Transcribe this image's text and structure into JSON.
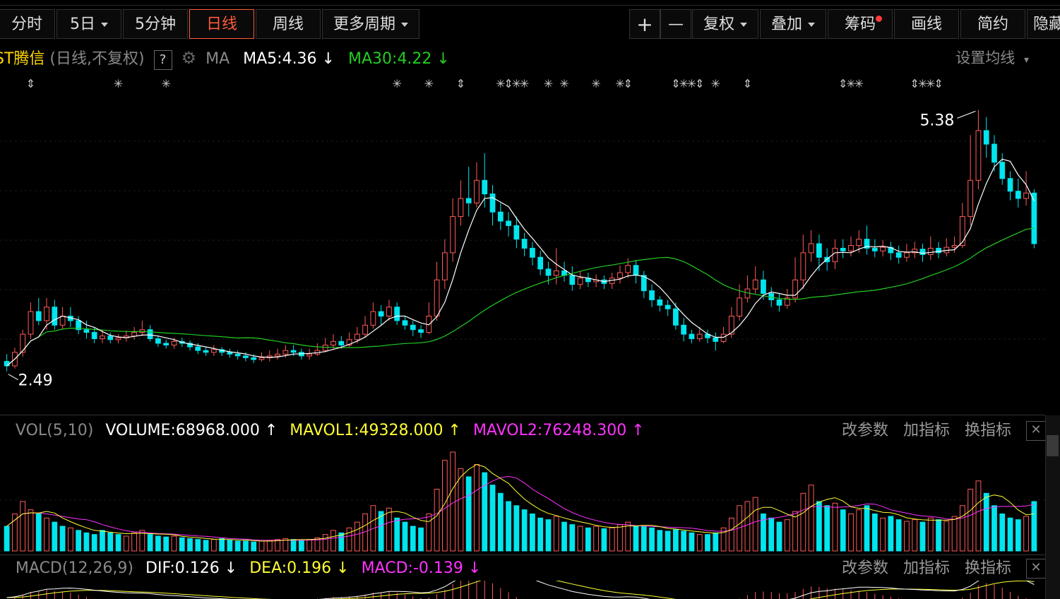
{
  "toolbar": {
    "tabs_left": [
      {
        "label": "分时"
      },
      {
        "label": "5日"
      },
      {
        "label": "5分钟"
      },
      {
        "label": "日线",
        "active": true
      },
      {
        "label": "周线"
      },
      {
        "label": "更多周期"
      }
    ],
    "tabs_right": [
      {
        "label": "+"
      },
      {
        "label": "—"
      },
      {
        "label": "复权"
      },
      {
        "label": "叠加"
      },
      {
        "label": "筹码"
      },
      {
        "label": "画线"
      },
      {
        "label": "简约"
      },
      {
        "label": "隐藏"
      }
    ]
  },
  "price_header": {
    "stock_name": "ST腾信",
    "mode": "(日线,不复权)",
    "help": "?",
    "ma_label": "MA",
    "ma5": "MA5:4.36",
    "ma30": "MA30:4.22",
    "settings_label": "设置均线"
  },
  "vol_header": {
    "name": "VOL(5,10)",
    "volume": "VOLUME:68968.000",
    "mavol1": "MAVOL1:49328.000",
    "mavol2": "MAVOL2:76248.300"
  },
  "macd_header": {
    "name": "MACD(12,26,9)",
    "dif": "DIF:0.126",
    "dea": "DEA:0.196",
    "macd": "MACD:-0.139"
  },
  "panel_actions": {
    "change_params": "改参数",
    "add_indicator": "加指标",
    "swap_indicator": "换指标",
    "close": "✕"
  },
  "colors": {
    "up": "#ff5a5a",
    "down": "#00e5ee",
    "ma5": "#ffffff",
    "ma30": "#22cc22",
    "mavol1": "#ffff33",
    "mavol2": "#ff33ff",
    "active_tab": "#ff5a3c"
  },
  "chart_data": {
    "type": "candlestick",
    "annotations": {
      "high_label": "5.38",
      "low_label": "2.49",
      "high": 5.38,
      "low": 2.49
    },
    "ylim": [
      2.3,
      5.5
    ],
    "ma5_last": 4.36,
    "ma30_last": 4.22,
    "candles": [
      [
        2.6,
        2.55,
        2.68,
        2.49
      ],
      [
        2.55,
        2.7,
        2.75,
        2.52
      ],
      [
        2.7,
        2.9,
        2.95,
        2.65
      ],
      [
        2.9,
        3.15,
        3.25,
        2.85
      ],
      [
        3.15,
        3.05,
        3.3,
        3.0
      ],
      [
        3.05,
        3.2,
        3.3,
        2.95
      ],
      [
        3.2,
        3.0,
        3.28,
        2.95
      ],
      [
        3.0,
        3.1,
        3.2,
        2.96
      ],
      [
        3.1,
        3.05,
        3.2,
        2.98
      ],
      [
        3.05,
        2.95,
        3.1,
        2.9
      ],
      [
        2.95,
        2.92,
        3.05,
        2.85
      ],
      [
        2.92,
        2.85,
        2.98,
        2.8
      ],
      [
        2.85,
        2.88,
        2.95,
        2.8
      ],
      [
        2.88,
        2.84,
        2.92,
        2.8
      ],
      [
        2.84,
        2.86,
        2.9,
        2.8
      ],
      [
        2.86,
        2.88,
        2.94,
        2.82
      ],
      [
        2.88,
        2.92,
        2.98,
        2.84
      ],
      [
        2.92,
        2.95,
        3.05,
        2.88
      ],
      [
        2.95,
        2.85,
        3.0,
        2.82
      ],
      [
        2.85,
        2.8,
        2.88,
        2.76
      ],
      [
        2.8,
        2.78,
        2.84,
        2.74
      ],
      [
        2.78,
        2.82,
        2.86,
        2.74
      ],
      [
        2.82,
        2.8,
        2.86,
        2.76
      ],
      [
        2.8,
        2.76,
        2.83,
        2.72
      ],
      [
        2.76,
        2.72,
        2.8,
        2.68
      ],
      [
        2.72,
        2.7,
        2.76,
        2.66
      ],
      [
        2.7,
        2.73,
        2.78,
        2.66
      ],
      [
        2.73,
        2.7,
        2.76,
        2.66
      ],
      [
        2.7,
        2.68,
        2.74,
        2.64
      ],
      [
        2.68,
        2.66,
        2.72,
        2.62
      ],
      [
        2.66,
        2.64,
        2.7,
        2.6
      ],
      [
        2.64,
        2.62,
        2.68,
        2.58
      ],
      [
        2.62,
        2.64,
        2.7,
        2.6
      ],
      [
        2.64,
        2.66,
        2.72,
        2.6
      ],
      [
        2.66,
        2.68,
        2.74,
        2.62
      ],
      [
        2.68,
        2.72,
        2.78,
        2.64
      ],
      [
        2.72,
        2.7,
        2.78,
        2.66
      ],
      [
        2.7,
        2.66,
        2.74,
        2.62
      ],
      [
        2.66,
        2.68,
        2.74,
        2.62
      ],
      [
        2.68,
        2.72,
        2.8,
        2.66
      ],
      [
        2.72,
        2.78,
        2.86,
        2.7
      ],
      [
        2.78,
        2.82,
        2.9,
        2.74
      ],
      [
        2.82,
        2.78,
        2.88,
        2.74
      ],
      [
        2.78,
        2.84,
        2.92,
        2.76
      ],
      [
        2.84,
        2.9,
        2.98,
        2.8
      ],
      [
        2.9,
        3.0,
        3.1,
        2.86
      ],
      [
        3.0,
        3.15,
        3.25,
        2.96
      ],
      [
        3.15,
        3.1,
        3.22,
        3.0
      ],
      [
        3.1,
        3.2,
        3.28,
        3.05
      ],
      [
        3.2,
        3.05,
        3.25,
        3.0
      ],
      [
        3.05,
        3.0,
        3.1,
        2.95
      ],
      [
        3.0,
        2.95,
        3.05,
        2.88
      ],
      [
        2.95,
        2.92,
        3.0,
        2.86
      ],
      [
        2.92,
        3.1,
        3.25,
        2.9
      ],
      [
        3.1,
        3.5,
        3.7,
        3.05
      ],
      [
        3.5,
        3.8,
        3.95,
        3.4
      ],
      [
        3.8,
        4.2,
        4.4,
        3.7
      ],
      [
        4.2,
        4.4,
        4.6,
        4.1
      ],
      [
        4.4,
        4.35,
        4.75,
        4.2
      ],
      [
        4.35,
        4.6,
        4.8,
        4.3
      ],
      [
        4.6,
        4.45,
        4.9,
        4.3
      ],
      [
        4.45,
        4.25,
        4.55,
        4.1
      ],
      [
        4.25,
        4.15,
        4.35,
        4.05
      ],
      [
        4.15,
        4.1,
        4.25,
        3.98
      ],
      [
        4.1,
        3.95,
        4.2,
        3.85
      ],
      [
        3.95,
        3.85,
        4.02,
        3.76
      ],
      [
        3.85,
        3.75,
        3.92,
        3.66
      ],
      [
        3.75,
        3.62,
        3.82,
        3.55
      ],
      [
        3.62,
        3.55,
        3.7,
        3.45
      ],
      [
        3.55,
        3.6,
        3.85,
        3.45
      ],
      [
        3.6,
        3.55,
        3.7,
        3.48
      ],
      [
        3.55,
        3.45,
        3.65,
        3.38
      ],
      [
        3.45,
        3.52,
        3.6,
        3.4
      ],
      [
        3.52,
        3.48,
        3.58,
        3.42
      ],
      [
        3.48,
        3.5,
        3.56,
        3.42
      ],
      [
        3.5,
        3.46,
        3.55,
        3.4
      ],
      [
        3.46,
        3.52,
        3.58,
        3.4
      ],
      [
        3.52,
        3.58,
        3.66,
        3.46
      ],
      [
        3.58,
        3.66,
        3.74,
        3.52
      ],
      [
        3.66,
        3.55,
        3.72,
        3.46
      ],
      [
        3.55,
        3.38,
        3.6,
        3.3
      ],
      [
        3.38,
        3.28,
        3.45,
        3.2
      ],
      [
        3.28,
        3.22,
        3.32,
        3.15
      ],
      [
        3.22,
        3.18,
        3.28,
        3.1
      ],
      [
        3.18,
        3.0,
        3.25,
        2.95
      ],
      [
        3.0,
        2.9,
        3.08,
        2.82
      ],
      [
        2.9,
        2.85,
        2.95,
        2.8
      ],
      [
        2.85,
        2.9,
        2.98,
        2.82
      ],
      [
        2.9,
        2.86,
        2.95,
        2.8
      ],
      [
        2.86,
        2.82,
        2.92,
        2.72
      ],
      [
        2.82,
        2.9,
        2.98,
        2.8
      ],
      [
        2.9,
        3.1,
        3.2,
        2.86
      ],
      [
        3.1,
        3.3,
        3.45,
        3.05
      ],
      [
        3.3,
        3.4,
        3.55,
        3.25
      ],
      [
        3.4,
        3.5,
        3.65,
        3.35
      ],
      [
        3.5,
        3.35,
        3.6,
        3.28
      ],
      [
        3.35,
        3.28,
        3.42,
        3.2
      ],
      [
        3.28,
        3.22,
        3.35,
        3.15
      ],
      [
        3.22,
        3.3,
        3.4,
        3.18
      ],
      [
        3.3,
        3.5,
        3.75,
        3.25
      ],
      [
        3.5,
        3.8,
        4.0,
        3.4
      ],
      [
        3.8,
        3.9,
        4.05,
        3.7
      ],
      [
        3.9,
        3.75,
        4.0,
        3.6
      ],
      [
        3.75,
        3.7,
        3.85,
        3.6
      ],
      [
        3.7,
        3.85,
        3.95,
        3.62
      ],
      [
        3.85,
        3.82,
        3.95,
        3.74
      ],
      [
        3.82,
        3.88,
        3.98,
        3.76
      ],
      [
        3.88,
        3.95,
        4.05,
        3.8
      ],
      [
        3.95,
        3.85,
        4.1,
        3.78
      ],
      [
        3.85,
        3.82,
        3.95,
        3.75
      ],
      [
        3.82,
        3.86,
        3.94,
        3.76
      ],
      [
        3.86,
        3.8,
        3.92,
        3.72
      ],
      [
        3.8,
        3.75,
        3.88,
        3.68
      ],
      [
        3.75,
        3.8,
        3.9,
        3.7
      ],
      [
        3.8,
        3.84,
        3.92,
        3.74
      ],
      [
        3.84,
        3.78,
        3.9,
        3.7
      ],
      [
        3.78,
        3.85,
        3.98,
        3.72
      ],
      [
        3.85,
        3.8,
        3.92,
        3.74
      ],
      [
        3.8,
        3.86,
        3.96,
        3.76
      ],
      [
        3.86,
        3.88,
        3.98,
        3.8
      ],
      [
        3.88,
        4.2,
        4.35,
        3.85
      ],
      [
        4.2,
        4.6,
        5.1,
        4.1
      ],
      [
        4.6,
        5.15,
        5.38,
        4.5
      ],
      [
        5.15,
        5.0,
        5.3,
        4.85
      ],
      [
        5.0,
        4.8,
        5.1,
        4.7
      ],
      [
        4.8,
        4.62,
        4.9,
        4.55
      ],
      [
        4.62,
        4.48,
        4.7,
        4.38
      ],
      [
        4.48,
        4.4,
        4.62,
        4.3
      ],
      [
        4.4,
        4.46,
        4.7,
        4.32
      ],
      [
        4.46,
        3.9,
        4.5,
        3.85
      ]
    ],
    "volume": [
      30,
      45,
      60,
      50,
      45,
      40,
      35,
      30,
      28,
      25,
      22,
      20,
      25,
      22,
      20,
      18,
      22,
      25,
      20,
      18,
      17,
      18,
      16,
      15,
      14,
      13,
      14,
      15,
      13,
      12,
      12,
      11,
      12,
      13,
      14,
      15,
      14,
      13,
      14,
      16,
      20,
      25,
      22,
      28,
      35,
      45,
      55,
      48,
      52,
      40,
      35,
      30,
      28,
      45,
      75,
      110,
      120,
      100,
      90,
      105,
      95,
      80,
      70,
      60,
      55,
      50,
      45,
      40,
      38,
      42,
      35,
      32,
      30,
      28,
      30,
      27,
      28,
      32,
      35,
      30,
      30,
      28,
      25,
      24,
      26,
      24,
      22,
      20,
      20,
      22,
      28,
      40,
      55,
      60,
      65,
      45,
      40,
      35,
      38,
      48,
      70,
      80,
      60,
      55,
      58,
      50,
      45,
      50,
      55,
      45,
      40,
      42,
      38,
      36,
      38,
      35,
      40,
      38,
      36,
      42,
      55,
      75,
      85,
      70,
      55,
      45,
      40,
      38,
      42,
      60
    ],
    "vol_up_days": [
      1,
      2,
      3,
      5,
      8,
      15,
      16,
      17,
      21,
      26,
      32,
      33,
      34,
      35,
      38,
      39,
      40,
      41,
      43,
      44,
      45,
      46,
      48,
      53,
      54,
      55,
      56,
      57,
      59,
      69,
      72,
      74,
      76,
      77,
      78,
      87,
      90,
      91,
      92,
      93,
      94,
      98,
      99,
      100,
      101,
      104,
      106,
      107,
      110,
      113,
      114,
      116,
      118,
      119,
      120,
      121,
      122,
      128
    ]
  }
}
